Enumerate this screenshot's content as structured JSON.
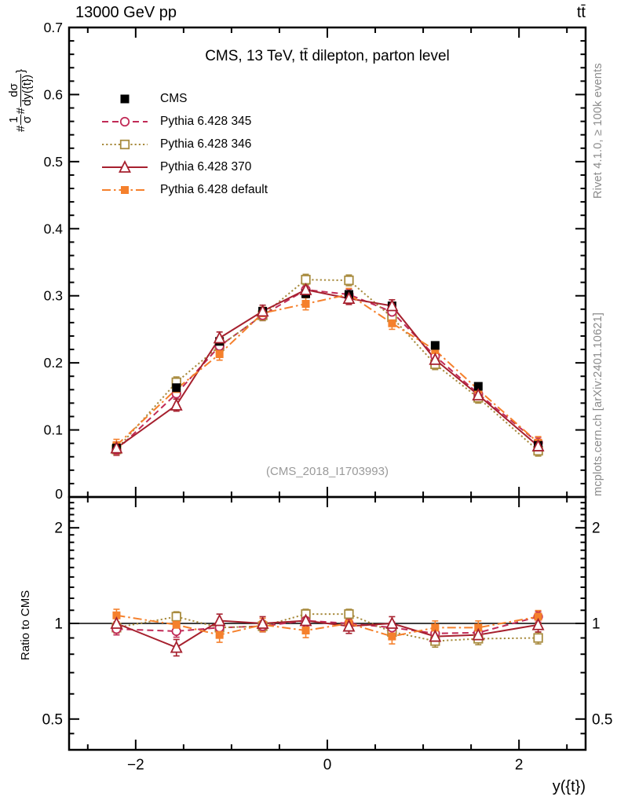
{
  "header": {
    "left": "13000 GeV pp",
    "right": "tt̄"
  },
  "title": "CMS, 13 TeV, tt̄ dilepton, parton level",
  "watermark": "(CMS_2018_I1703993)",
  "credits": {
    "rivet": "Rivet 4.1.0, ≥ 100k events",
    "mcplots": "mcplots.cern.ch [arXiv:2401.10621]"
  },
  "axes": {
    "x_label": "y({t})",
    "ratio_label": "Ratio to CMS",
    "y_label": {
      "hash1": "#",
      "frac1_num": "1",
      "frac1_den": "σ",
      "hash2": "#",
      "frac2_num": "dσ",
      "frac2_den": "dy({t})",
      "suffix": "}"
    }
  },
  "chart_data": {
    "type": "line",
    "title": "CMS, 13 TeV, tt̄ dilepton, parton level",
    "xlabel": "y({t})",
    "ylabel": "1/σ dσ/dy({t})",
    "x": [
      -2.2,
      -1.575,
      -1.125,
      -0.675,
      -0.225,
      0.225,
      0.675,
      1.125,
      1.575,
      2.2
    ],
    "x_axis": {
      "lim": [
        -2.695,
        2.695
      ],
      "major_ticks": [
        -2,
        0,
        2
      ],
      "major_labels": [
        "−2",
        "0",
        "2"
      ],
      "minor_step": 0.5
    },
    "main_panel": {
      "ylim": [
        0,
        0.7
      ],
      "ytick_values": [
        0,
        0.1,
        0.2,
        0.3,
        0.4,
        0.5,
        0.6,
        0.7
      ],
      "ytick_labels": [
        "0",
        "0.1",
        "0.2",
        "0.3",
        "0.4",
        "0.5",
        "0.6",
        "0.7"
      ],
      "minor_step": 0.02,
      "series": [
        {
          "name": "CMS",
          "color": "#000000",
          "line": "none",
          "marker": "square-filled",
          "size": 11,
          "values": [
            0.073,
            0.163,
            0.232,
            0.277,
            0.303,
            0.302,
            0.285,
            0.226,
            0.165,
            0.077
          ],
          "err": 0.004
        },
        {
          "name": "Pythia 6.428 345",
          "color": "#c12a56",
          "line": "dashed",
          "marker": "circle-open",
          "size": 10.5,
          "values": [
            0.07,
            0.154,
            0.225,
            0.271,
            0.309,
            0.302,
            0.276,
            0.21,
            0.154,
            0.081
          ],
          "err": 0.008
        },
        {
          "name": "Pythia 6.428 346",
          "color": "#a88b3e",
          "line": "dotted",
          "marker": "square-open",
          "size": 10.5,
          "values": [
            0.071,
            0.171,
            0.225,
            0.271,
            0.324,
            0.323,
            0.268,
            0.198,
            0.148,
            0.069
          ],
          "err": 0.008
        },
        {
          "name": "Pythia 6.428 370",
          "color": "#a6202e",
          "line": "solid",
          "marker": "triangle-open",
          "size": 12,
          "values": [
            0.073,
            0.137,
            0.237,
            0.277,
            0.309,
            0.296,
            0.285,
            0.205,
            0.152,
            0.076
          ],
          "err": 0.009
        },
        {
          "name": "Pythia 6.428 default",
          "color": "#f5802c",
          "line": "dashdot",
          "marker": "square-filled",
          "size": 10,
          "values": [
            0.077,
            0.161,
            0.213,
            0.274,
            0.288,
            0.302,
            0.259,
            0.219,
            0.16,
            0.081
          ],
          "err": 0.009
        }
      ]
    },
    "ratio_panel": {
      "label": "Ratio to CMS",
      "scale": "log",
      "ylim": [
        0.4,
        2.5
      ],
      "reference_line": 1,
      "ytick_values": [
        0.5,
        1,
        2
      ],
      "ytick_labels": [
        "0.5",
        "1",
        "2"
      ],
      "minor_ticks": [
        0.45,
        0.6,
        0.7,
        0.8,
        0.9,
        1.1,
        1.2,
        1.3,
        1.4,
        1.5,
        1.6,
        1.7,
        1.8,
        1.9,
        2.1,
        2.2,
        2.3,
        2.4
      ],
      "series": [
        {
          "name": "Pythia 6.428 345",
          "color": "#c12a56",
          "line": "dashed",
          "marker": "circle-open",
          "size": 10.5,
          "values": [
            0.96,
            0.945,
            0.97,
            0.98,
            1.02,
            1.0,
            0.97,
            0.93,
            0.935,
            1.05
          ],
          "err": 0.04
        },
        {
          "name": "Pythia 6.428 346",
          "color": "#a88b3e",
          "line": "dotted",
          "marker": "square-open",
          "size": 10.5,
          "values": [
            0.97,
            1.05,
            0.97,
            0.98,
            1.07,
            1.07,
            0.94,
            0.88,
            0.895,
            0.9
          ],
          "err": 0.038
        },
        {
          "name": "Pythia 6.428 370",
          "color": "#a6202e",
          "line": "solid",
          "marker": "triangle-open",
          "size": 12,
          "values": [
            1.0,
            0.84,
            1.02,
            1.0,
            1.02,
            0.98,
            1.0,
            0.91,
            0.92,
            0.99
          ],
          "err": 0.05
        },
        {
          "name": "Pythia 6.428 default",
          "color": "#f5802c",
          "line": "dashdot",
          "marker": "square-filled",
          "size": 10,
          "values": [
            1.06,
            0.99,
            0.92,
            0.99,
            0.95,
            1.0,
            0.91,
            0.97,
            0.97,
            1.05
          ],
          "err": 0.048
        }
      ]
    }
  }
}
